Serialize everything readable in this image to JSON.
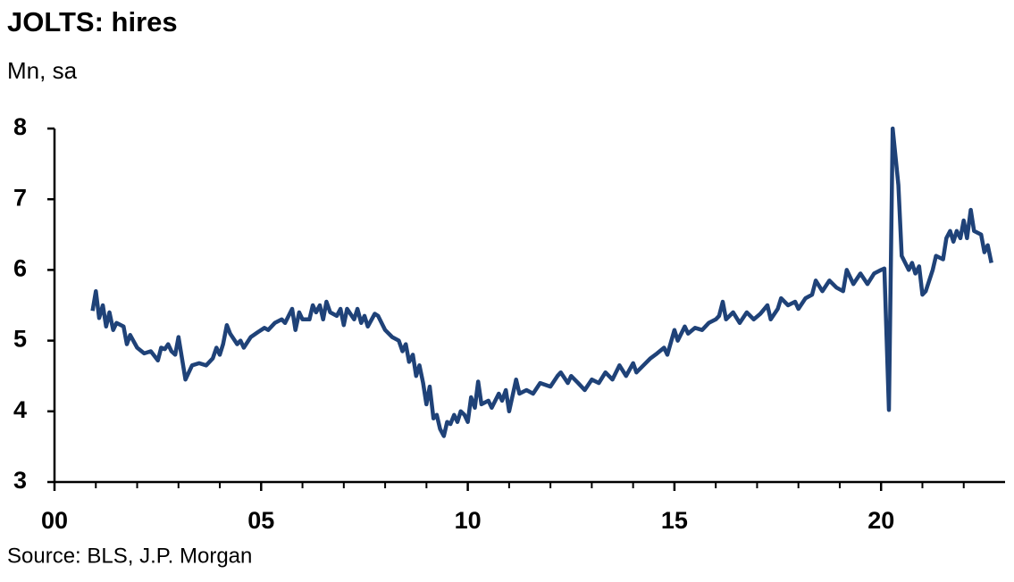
{
  "chart_data": {
    "type": "line",
    "title": "JOLTS: hires",
    "subtitle": "Mn, sa",
    "source": "Source: BLS, J.P. Morgan",
    "xlim": [
      0,
      23
    ],
    "ylim": [
      3,
      8
    ],
    "xticks": [
      {
        "value": 0,
        "label": "00"
      },
      {
        "value": 5,
        "label": "05"
      },
      10,
      15,
      20
    ],
    "xminorticks": [
      1,
      2,
      3,
      4,
      6,
      7,
      8,
      9,
      11,
      12,
      13,
      14,
      16,
      17,
      18,
      19,
      21,
      22
    ],
    "yticks": [
      3,
      4,
      5,
      6,
      7,
      8
    ],
    "grid": false,
    "x": [
      0.92,
      1.0,
      1.08,
      1.17,
      1.25,
      1.33,
      1.42,
      1.5,
      1.67,
      1.75,
      1.83,
      2.0,
      2.17,
      2.33,
      2.5,
      2.58,
      2.67,
      2.75,
      2.83,
      2.92,
      3.0,
      3.17,
      3.33,
      3.5,
      3.67,
      3.83,
      3.92,
      4.0,
      4.08,
      4.17,
      4.25,
      4.42,
      4.5,
      4.58,
      4.75,
      4.92,
      5.08,
      5.17,
      5.33,
      5.5,
      5.58,
      5.75,
      5.83,
      5.92,
      6.0,
      6.17,
      6.25,
      6.33,
      6.42,
      6.5,
      6.58,
      6.67,
      6.83,
      6.92,
      7.0,
      7.08,
      7.25,
      7.33,
      7.42,
      7.5,
      7.58,
      7.75,
      7.83,
      8.0,
      8.17,
      8.33,
      8.42,
      8.5,
      8.58,
      8.67,
      8.75,
      8.83,
      8.92,
      9.0,
      9.08,
      9.17,
      9.25,
      9.33,
      9.42,
      9.5,
      9.58,
      9.67,
      9.75,
      9.83,
      9.92,
      10.0,
      10.08,
      10.17,
      10.25,
      10.33,
      10.5,
      10.58,
      10.75,
      10.83,
      10.92,
      11.0,
      11.17,
      11.25,
      11.42,
      11.58,
      11.75,
      12.0,
      12.17,
      12.25,
      12.42,
      12.5,
      12.67,
      12.83,
      13.0,
      13.17,
      13.33,
      13.5,
      13.67,
      13.83,
      14.0,
      14.08,
      14.25,
      14.42,
      14.58,
      14.75,
      14.83,
      15.0,
      15.08,
      15.25,
      15.33,
      15.5,
      15.67,
      15.83,
      16.0,
      16.08,
      16.17,
      16.25,
      16.42,
      16.58,
      16.75,
      16.92,
      17.08,
      17.25,
      17.33,
      17.5,
      17.58,
      17.75,
      17.92,
      18.0,
      18.17,
      18.33,
      18.42,
      18.58,
      18.75,
      18.92,
      19.08,
      19.17,
      19.33,
      19.5,
      19.67,
      19.83,
      20.0,
      20.08,
      20.19,
      20.28,
      20.42,
      20.5,
      20.67,
      20.75,
      20.83,
      20.92,
      21.0,
      21.08,
      21.25,
      21.33,
      21.5,
      21.58,
      21.67,
      21.75,
      21.83,
      21.92,
      22.0,
      22.08,
      22.17,
      22.25,
      22.42,
      22.5,
      22.58,
      22.67
    ],
    "series": [
      {
        "color": "#1f4278",
        "values": [
          5.42,
          5.7,
          5.32,
          5.5,
          5.2,
          5.4,
          5.15,
          5.25,
          5.2,
          4.95,
          5.08,
          4.9,
          4.82,
          4.85,
          4.72,
          4.9,
          4.88,
          4.95,
          4.85,
          4.8,
          5.05,
          4.45,
          4.65,
          4.68,
          4.65,
          4.75,
          4.9,
          4.8,
          4.95,
          5.22,
          5.1,
          4.95,
          5.0,
          4.9,
          5.05,
          5.12,
          5.18,
          5.15,
          5.25,
          5.3,
          5.25,
          5.45,
          5.15,
          5.4,
          5.3,
          5.3,
          5.5,
          5.4,
          5.5,
          5.3,
          5.55,
          5.4,
          5.35,
          5.45,
          5.22,
          5.45,
          5.3,
          5.45,
          5.25,
          5.35,
          5.2,
          5.38,
          5.35,
          5.15,
          5.05,
          5.0,
          4.85,
          4.95,
          4.7,
          4.8,
          4.5,
          4.65,
          4.4,
          4.1,
          4.35,
          3.9,
          3.95,
          3.75,
          3.65,
          3.85,
          3.82,
          3.95,
          3.85,
          4.0,
          3.95,
          3.85,
          4.2,
          4.05,
          4.42,
          4.1,
          4.15,
          4.05,
          4.25,
          4.15,
          4.3,
          4.0,
          4.45,
          4.25,
          4.3,
          4.25,
          4.4,
          4.35,
          4.5,
          4.55,
          4.4,
          4.5,
          4.4,
          4.3,
          4.45,
          4.4,
          4.55,
          4.45,
          4.65,
          4.5,
          4.68,
          4.55,
          4.65,
          4.75,
          4.82,
          4.9,
          4.8,
          5.15,
          5.0,
          5.2,
          5.1,
          5.18,
          5.15,
          5.25,
          5.3,
          5.35,
          5.55,
          5.3,
          5.4,
          5.25,
          5.4,
          5.3,
          5.38,
          5.5,
          5.3,
          5.45,
          5.6,
          5.5,
          5.55,
          5.45,
          5.6,
          5.65,
          5.85,
          5.7,
          5.85,
          5.75,
          5.7,
          6.0,
          5.8,
          5.95,
          5.8,
          5.95,
          6.0,
          6.02,
          4.02,
          8.0,
          7.2,
          6.2,
          6.0,
          6.1,
          5.95,
          6.05,
          5.65,
          5.7,
          6.0,
          6.2,
          6.15,
          6.45,
          6.55,
          6.4,
          6.55,
          6.45,
          6.7,
          6.45,
          6.85,
          6.55,
          6.5,
          6.25,
          6.35,
          6.1
        ]
      }
    ]
  }
}
